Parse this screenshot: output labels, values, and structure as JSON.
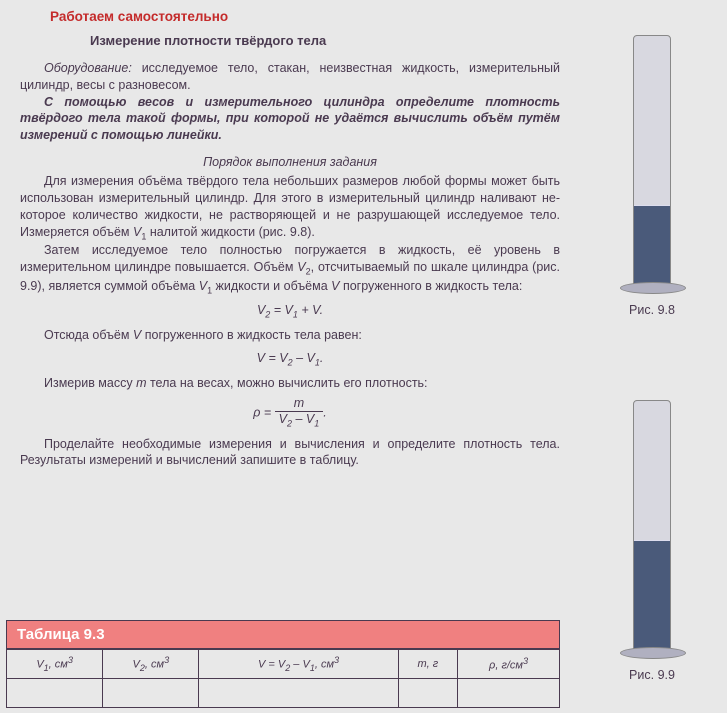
{
  "rubric": "Работаем самостоятельно",
  "title": "Измерение плотности твёрдого тела",
  "equip_label": "Оборудование:",
  "equip_text": " исследуемое тело, стакан, неизвестная жидкость, измерительный цилиндр, весы с разновесом.",
  "task_bold": "С помощью весов и измерительного цилиндра определите плотность твёрдого тела такой формы, при которой не удаётся вычислить объём путём измерений с помощью линейки.",
  "subhead": "Порядок выполнения задания",
  "p1": "Для измерения объёма твёрдого тела небольших разме­ров любой формы может быть использован измерительный цилиндр. Для этого в измерительный цилиндр наливают не­которое количество жидкости, не растворяющей и не раз­рушающей исследуемое тело. Измеряется объём ",
  "p1_v1": "V",
  "p1_tail": " нали­той жидкости (рис. 9.8).",
  "p2a": "Затем исследуемое тело полностью погружается в жид­кость, её уровень в измерительном цилиндре повышается. Объём ",
  "p2b": ", отсчитываемый по шкале цилиндра (рис. 9.9), яв­ляется суммой объёма ",
  "p2c": " жидкости и объёма ",
  "p2d": " погружен­ного в жидкость тела:",
  "formula1_lhs": "V",
  "formula1_eq": " = ",
  "formula1_plus": " + ",
  "formula1_dot": ".",
  "p3a": "Отсюда объём ",
  "p3b": " погруженного в жидкость тела равен:",
  "formula2_eq": " = ",
  "formula2_minus": " – ",
  "p4a": "Измерив массу ",
  "p4b": " тела на весах, можно вычислить его плотность:",
  "rho": "ρ = ",
  "num_m": "m",
  "den_minus": " – ",
  "p5": "Проделайте необходимые измерения и вычисления и определите плотность тела. Результаты измерений и вычис­лений запишите в таблицу.",
  "table_title": "Таблица 9.3",
  "col1a": "V",
  "col1b": ", см",
  "col2a": "V",
  "col2b": ", см",
  "col3a": "V",
  "col3b": " = ",
  "col3c": " – ",
  "col3d": ", см",
  "col4a": "m",
  "col4b": ", г",
  "col5a": "ρ",
  "col5b": ", г/см",
  "fig1_label": "Рис. 9.8",
  "fig2_label": "Рис. 9.9",
  "sub1": "1",
  "sub2": "2",
  "sup3": "3",
  "V": "V",
  "m": "m"
}
